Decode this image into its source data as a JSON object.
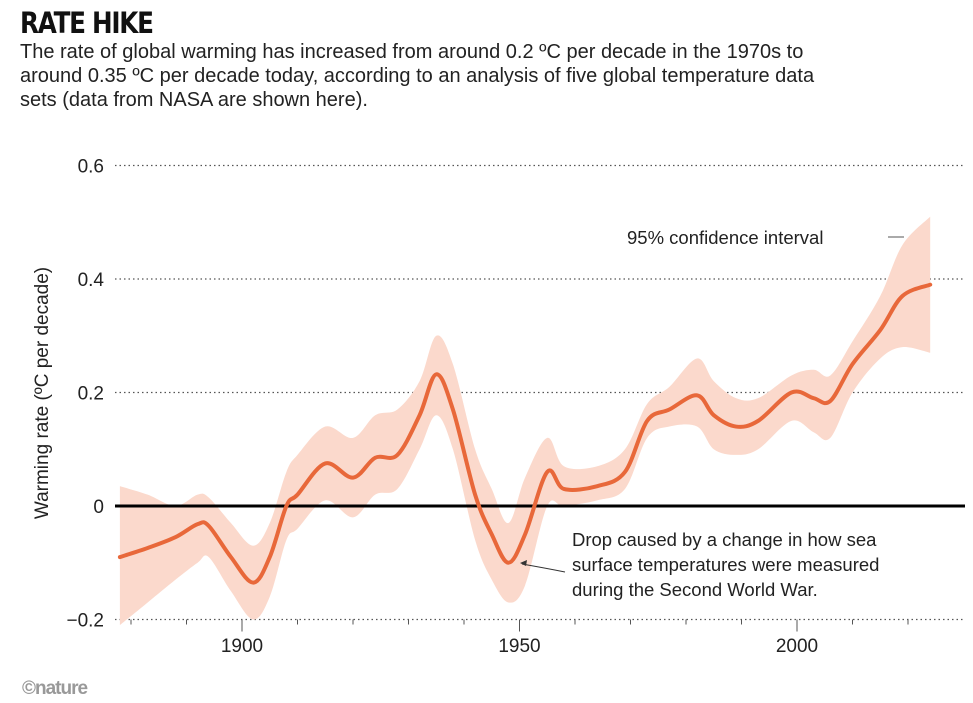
{
  "title": "RATE HIKE",
  "subtitle": "The rate of global warming has increased from around 0.2 ºC per decade in the 1970s to around 0.35 ºC per decade today, according to an analysis of five global temperature data sets (data from NASA are shown here).",
  "logo": "©nature",
  "colors": {
    "line": "#e8683a",
    "band": "#fbd9cc",
    "zero_line": "#000000",
    "grid": "#555555"
  },
  "chart_data": {
    "type": "line",
    "title": "RATE HIKE",
    "xlabel": "",
    "ylabel": "Warming rate (ºC per decade)",
    "xlim": [
      1877,
      2030
    ],
    "ylim": [
      -0.2,
      0.6
    ],
    "x_ticks": [
      "1900",
      "1950",
      "2000"
    ],
    "y_ticks": [
      "−0.2",
      "0",
      "0.2",
      "0.4",
      "0.6"
    ],
    "grid": "horizontal dotted",
    "series": [
      {
        "x": [
          1878,
          1883,
          1888,
          1892,
          1894,
          1898,
          1902,
          1905,
          1908,
          1910,
          1915,
          1920,
          1924,
          1928,
          1932,
          1935,
          1938,
          1942,
          1945,
          1948,
          1951,
          1955,
          1958,
          1964,
          1969,
          1973,
          1977,
          1982,
          1985,
          1989,
          1993,
          1999,
          2003,
          2006,
          2010,
          2015,
          2019,
          2024
        ],
        "y": [
          -0.09,
          -0.074,
          -0.055,
          -0.032,
          -0.035,
          -0.09,
          -0.135,
          -0.09,
          0,
          0.02,
          0.075,
          0.05,
          0.085,
          0.09,
          0.16,
          0.232,
          0.17,
          0.02,
          -0.05,
          -0.1,
          -0.05,
          0.06,
          0.03,
          0.035,
          0.06,
          0.15,
          0.17,
          0.195,
          0.16,
          0.14,
          0.15,
          0.2,
          0.19,
          0.185,
          0.25,
          0.31,
          0.37,
          0.39
        ],
        "upper": [
          0.035,
          0.02,
          0.0,
          0.02,
          0.015,
          -0.03,
          -0.07,
          -0.03,
          0.06,
          0.09,
          0.14,
          0.12,
          0.16,
          0.17,
          0.22,
          0.3,
          0.25,
          0.1,
          0.03,
          -0.03,
          0.05,
          0.12,
          0.07,
          0.07,
          0.1,
          0.18,
          0.21,
          0.26,
          0.22,
          0.19,
          0.19,
          0.23,
          0.24,
          0.23,
          0.29,
          0.37,
          0.46,
          0.51
        ],
        "lower": [
          -0.21,
          -0.17,
          -0.13,
          -0.1,
          -0.09,
          -0.15,
          -0.2,
          -0.16,
          -0.06,
          -0.04,
          0.01,
          -0.02,
          0.02,
          0.03,
          0.1,
          0.16,
          0.1,
          -0.06,
          -0.13,
          -0.17,
          -0.14,
          0.0,
          0.0,
          0.01,
          0.03,
          0.12,
          0.14,
          0.14,
          0.1,
          0.09,
          0.1,
          0.15,
          0.13,
          0.12,
          0.2,
          0.26,
          0.28,
          0.27
        ]
      }
    ],
    "annotations": [
      {
        "text": "95% confidence interval",
        "x": 2022,
        "y": 0.47
      },
      {
        "lines": [
          "Drop caused by a change in how sea",
          "surface temperatures were measured",
          "during the Second World War."
        ],
        "x": 1948,
        "y": -0.1
      }
    ]
  }
}
